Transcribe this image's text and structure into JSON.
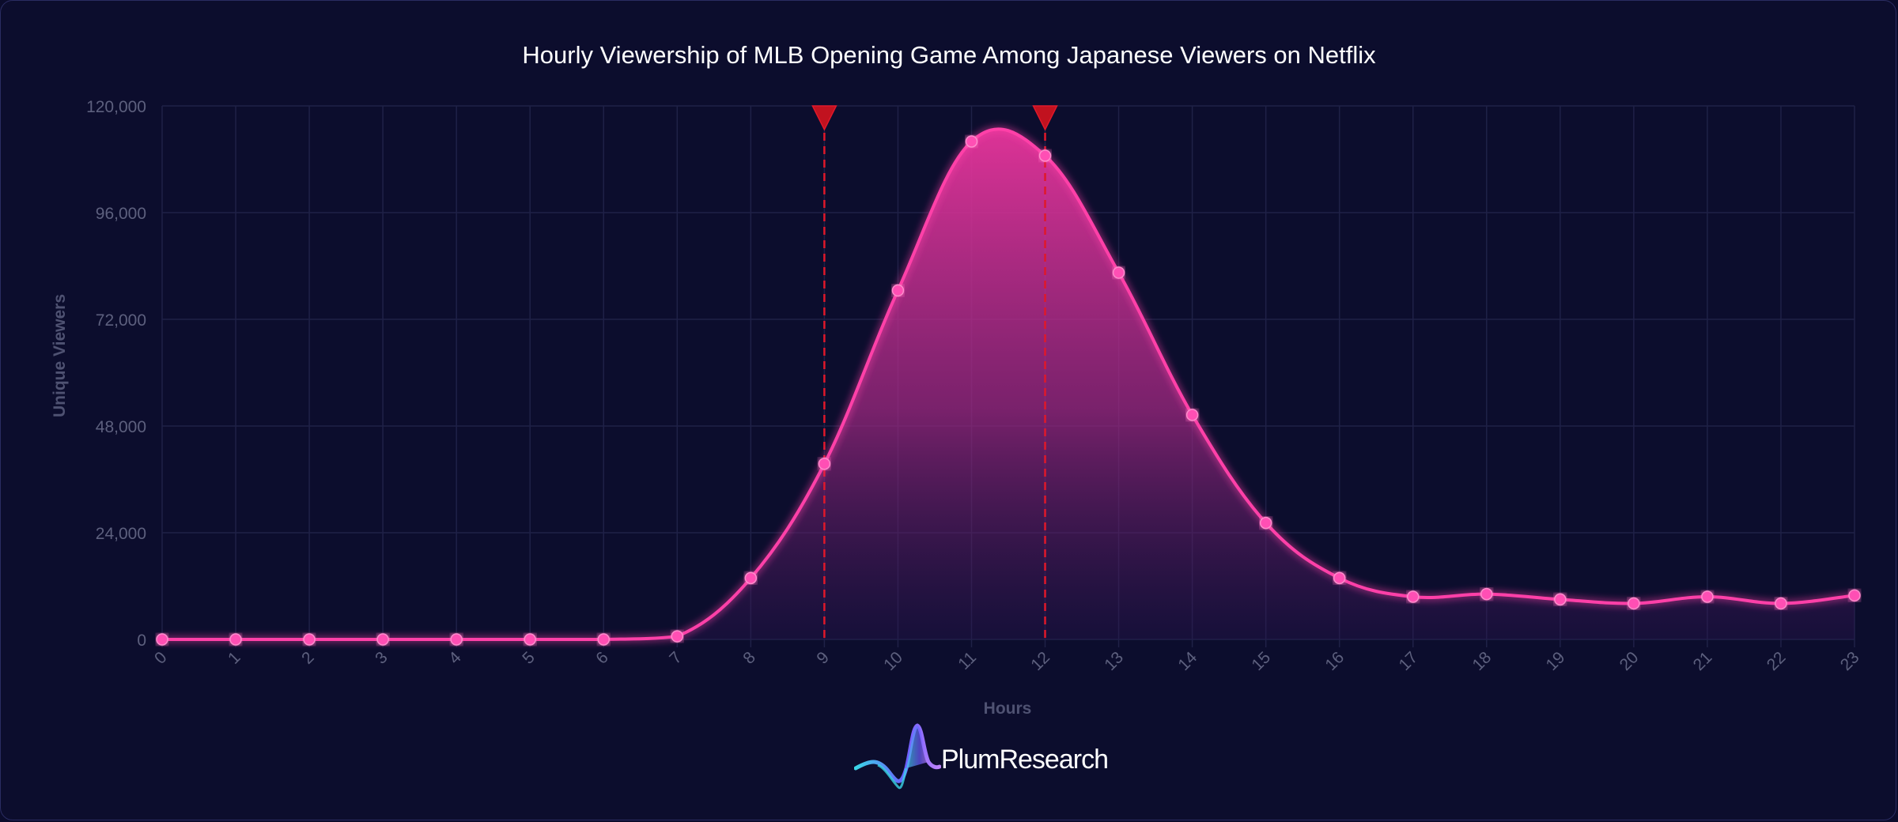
{
  "chart_data": {
    "type": "area",
    "title": "Hourly Viewership of MLB Opening Game Among Japanese Viewers on Netflix",
    "xlabel": "Hours",
    "ylabel": "Unique Viewers",
    "x": [
      0,
      1,
      2,
      3,
      4,
      5,
      6,
      7,
      8,
      9,
      10,
      11,
      12,
      13,
      14,
      15,
      16,
      17,
      18,
      19,
      20,
      21,
      22,
      23
    ],
    "series": [
      {
        "values": [
          0,
          0,
          0,
          0,
          0,
          0,
          0,
          700,
          13800,
          39500,
          78500,
          112000,
          108800,
          82500,
          50500,
          26200,
          13800,
          9600,
          10200,
          9000,
          8100,
          9600,
          8100,
          9900
        ]
      }
    ],
    "ylim": [
      0,
      120000
    ],
    "yticks": [
      0,
      24000,
      48000,
      72000,
      96000,
      120000
    ],
    "ytick_labels": [
      "0",
      "24,000",
      "48,000",
      "72,000",
      "96,000",
      "120,000"
    ],
    "markers": [
      9,
      12
    ],
    "grid": true,
    "colors": {
      "line": "#ff3fa8",
      "fill_top": "#e8359c",
      "marker_line": "#e0182a",
      "grid": "#1f2147",
      "tick_text": "#5d607e"
    }
  },
  "brand": {
    "name": "PlumResearch",
    "logo_icon": "wave-logo-icon"
  }
}
